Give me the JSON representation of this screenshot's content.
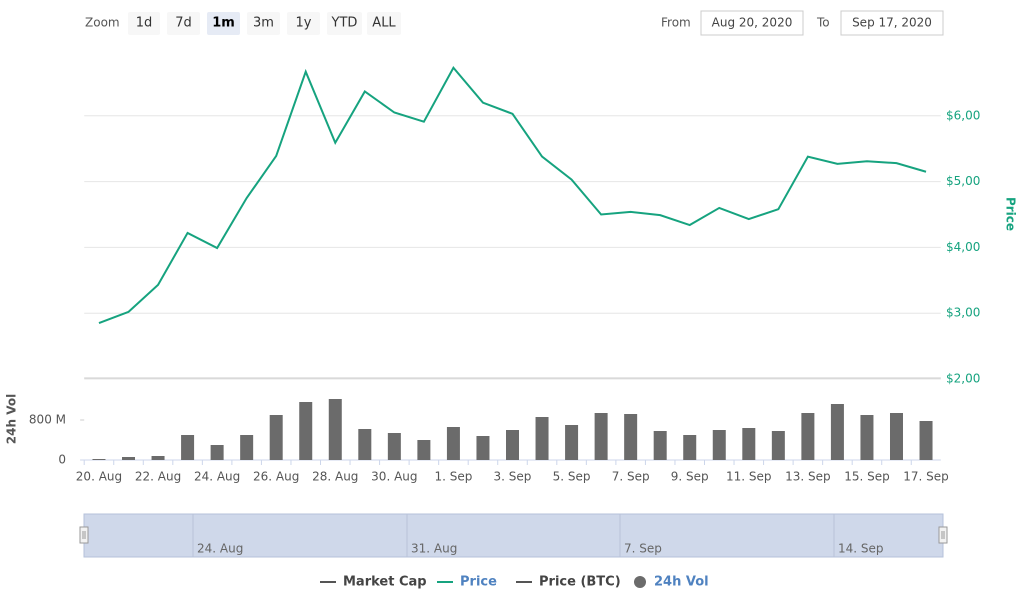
{
  "zoom": {
    "label": "Zoom",
    "buttons": [
      "1d",
      "7d",
      "1m",
      "3m",
      "1y",
      "YTD",
      "ALL"
    ],
    "active": 2
  },
  "range": {
    "from_label": "From",
    "from": "Aug 20, 2020",
    "to_label": "To",
    "to": "Sep 17, 2020"
  },
  "chart_data": [
    {
      "type": "line",
      "y_label": "Price",
      "series": [
        {
          "color": "#16a37f",
          "values": [
            2.85,
            3.02,
            3.43,
            4.22,
            3.99,
            4.75,
            5.39,
            6.67,
            5.59,
            6.37,
            6.05,
            5.91,
            6.73,
            6.2,
            6.03,
            5.38,
            5.03,
            4.5,
            4.54,
            4.49,
            4.34,
            4.6,
            4.43,
            4.58,
            5.38,
            5.27,
            5.31,
            5.28,
            5.15
          ]
        }
      ],
      "ylim": [
        2,
        7
      ],
      "yticks": [
        {
          "value": 2,
          "label": "$2,00"
        },
        {
          "value": 3,
          "label": "$3,00"
        },
        {
          "value": 4,
          "label": "$4,00"
        },
        {
          "value": 5,
          "label": "$5,00"
        },
        {
          "value": 6,
          "label": "$6,00"
        }
      ],
      "grid": true
    },
    {
      "type": "bar",
      "y_label": "24h Vol",
      "categories": [
        "20. Aug",
        null,
        "22. Aug",
        null,
        "24. Aug",
        null,
        "26. Aug",
        null,
        "28. Aug",
        null,
        "30. Aug",
        null,
        "1. Sep",
        null,
        "3. Sep",
        null,
        "5. Sep",
        null,
        "7. Sep",
        null,
        "9. Sep",
        null,
        "11. Sep",
        null,
        "13. Sep",
        null,
        "15. Sep",
        null,
        "17. Sep"
      ],
      "series": [
        {
          "color": "#6b6b6b",
          "values": [
            20000000,
            60000000,
            80000000,
            500000000,
            300000000,
            500000000,
            900000000,
            1160000000,
            1220000000,
            620000000,
            540000000,
            400000000,
            660000000,
            480000000,
            600000000,
            860000000,
            700000000,
            940000000,
            920000000,
            580000000,
            500000000,
            600000000,
            640000000,
            580000000,
            940000000,
            1120000000,
            900000000,
            940000000,
            780000000
          ]
        }
      ],
      "ylim": [
        0,
        1640000000
      ],
      "yticks": [
        0,
        {
          "value": 800000000,
          "label": "800 M"
        }
      ],
      "grid": false
    }
  ],
  "navigator": {
    "labels": [
      "24. Aug",
      "31. Aug",
      "7. Sep",
      "14. Sep"
    ]
  },
  "legend": [
    {
      "name": "Market Cap",
      "color": "#555555",
      "active": false,
      "symbol": "line"
    },
    {
      "name": "Price",
      "color": "#16a37f",
      "active": true,
      "symbol": "line"
    },
    {
      "name": "Price (BTC)",
      "color": "#555555",
      "active": false,
      "symbol": "line"
    },
    {
      "name": "24h Vol",
      "color": "#6b6b6b",
      "active": true,
      "symbol": "circle"
    }
  ]
}
